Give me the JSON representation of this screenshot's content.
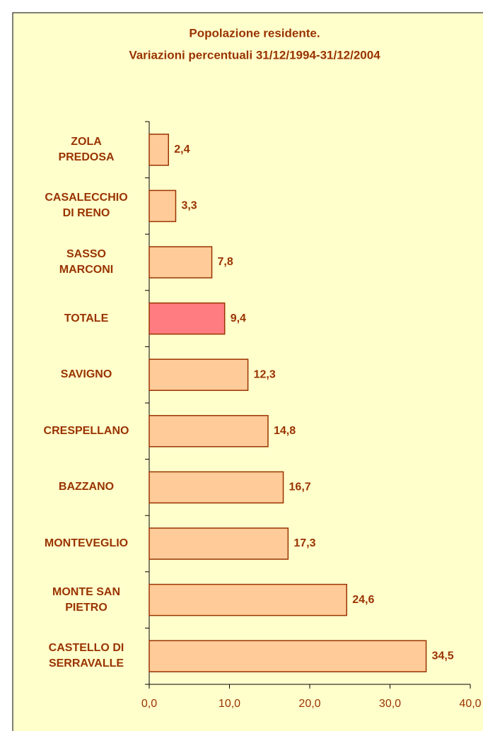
{
  "chart_data": {
    "type": "bar",
    "orientation": "horizontal",
    "title": "Popolazione residente.",
    "subtitle": "Variazioni percentuali 31/12/1994-31/12/2004",
    "categories": [
      "ZOLA\nPREDOSA",
      "CASALECCHIO\nDI RENO",
      "SASSO\nMARCONI",
      "TOTALE",
      "SAVIGNO",
      "CRESPELLANO",
      "BAZZANO",
      "MONTEVEGLIO",
      "MONTE SAN\nPIETRO",
      "CASTELLO DI\nSERRAVALLE"
    ],
    "values": [
      2.4,
      3.3,
      7.8,
      9.4,
      12.3,
      14.8,
      16.7,
      17.3,
      24.6,
      34.5
    ],
    "value_labels": [
      "2,4",
      "3,3",
      "7,8",
      "9,4",
      "12,3",
      "14,8",
      "16,7",
      "17,3",
      "24,6",
      "34,5"
    ],
    "colors": [
      "#ffcc99",
      "#ffcc99",
      "#ffcc99",
      "#ff7c80",
      "#ffcc99",
      "#ffcc99",
      "#ffcc99",
      "#ffcc99",
      "#ffcc99",
      "#ffcc99"
    ],
    "xlim": [
      0,
      40
    ],
    "xticks": [
      {
        "value": 0,
        "label": "0,0"
      },
      {
        "value": 10,
        "label": "10,0"
      },
      {
        "value": 20,
        "label": "20,0"
      },
      {
        "value": 30,
        "label": "30,0"
      },
      {
        "value": 40,
        "label": "40,0"
      }
    ],
    "grid": false
  }
}
